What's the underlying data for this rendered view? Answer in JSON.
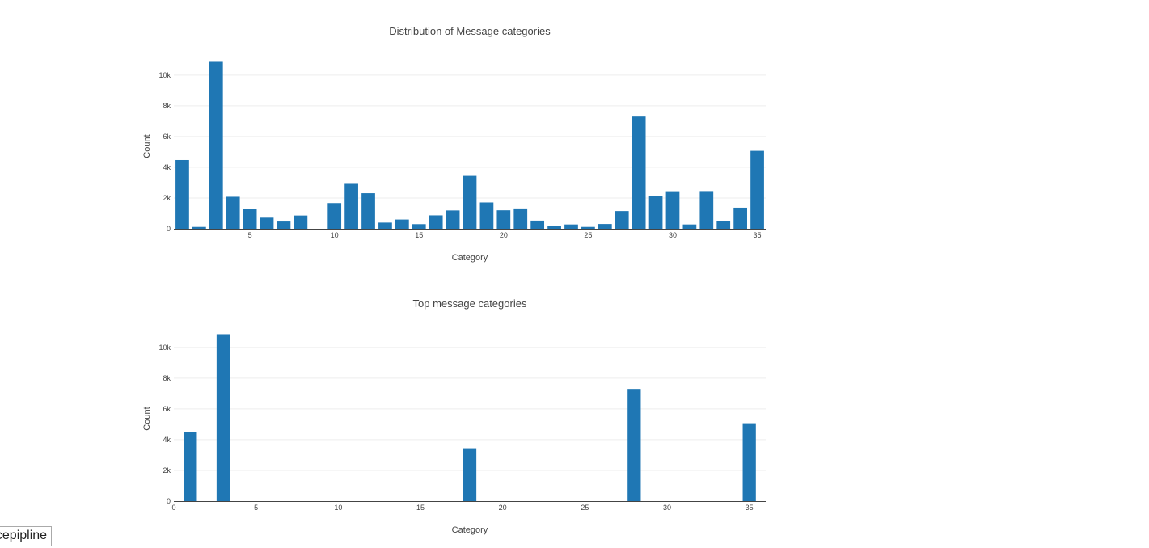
{
  "colors": {
    "bar": "#1f77b4",
    "text": "#444444",
    "grid": "#eeeeee"
  },
  "footer": {
    "label": "ncepipline"
  },
  "chart_data": [
    {
      "type": "bar",
      "title": "Distribution of Message categories",
      "xlabel": "Category",
      "ylabel": "Count",
      "xlim": [
        0.5,
        35.5
      ],
      "ylim": [
        0,
        11200
      ],
      "x_ticks": [
        5,
        10,
        15,
        20,
        25,
        30,
        35
      ],
      "y_ticks": [
        0,
        2000,
        4000,
        6000,
        8000,
        10000
      ],
      "y_tick_labels": [
        "0",
        "2k",
        "4k",
        "6k",
        "8k",
        "10k"
      ],
      "grid": true,
      "x": [
        1,
        2,
        3,
        4,
        5,
        6,
        7,
        8,
        9,
        10,
        11,
        12,
        13,
        14,
        15,
        16,
        17,
        18,
        19,
        20,
        21,
        22,
        23,
        24,
        25,
        26,
        27,
        28,
        29,
        30,
        31,
        32,
        33,
        34,
        35
      ],
      "values": [
        4470,
        120,
        10860,
        2080,
        1310,
        720,
        470,
        860,
        0,
        1670,
        2920,
        2310,
        400,
        600,
        300,
        870,
        1190,
        3440,
        1710,
        1200,
        1320,
        530,
        160,
        280,
        120,
        310,
        1150,
        7300,
        2150,
        2440,
        280,
        2450,
        500,
        1370,
        5070
      ]
    },
    {
      "type": "bar",
      "title": "Top message categories",
      "xlabel": "Category",
      "ylabel": "Count",
      "xlim": [
        0,
        36
      ],
      "ylim": [
        0,
        11200
      ],
      "x_ticks": [
        0,
        5,
        10,
        15,
        20,
        25,
        30,
        35
      ],
      "y_ticks": [
        0,
        2000,
        4000,
        6000,
        8000,
        10000
      ],
      "y_tick_labels": [
        "0",
        "2k",
        "4k",
        "6k",
        "8k",
        "10k"
      ],
      "grid": true,
      "x": [
        1,
        3,
        18,
        28,
        35
      ],
      "values": [
        4470,
        10860,
        3440,
        7300,
        5070
      ]
    }
  ]
}
